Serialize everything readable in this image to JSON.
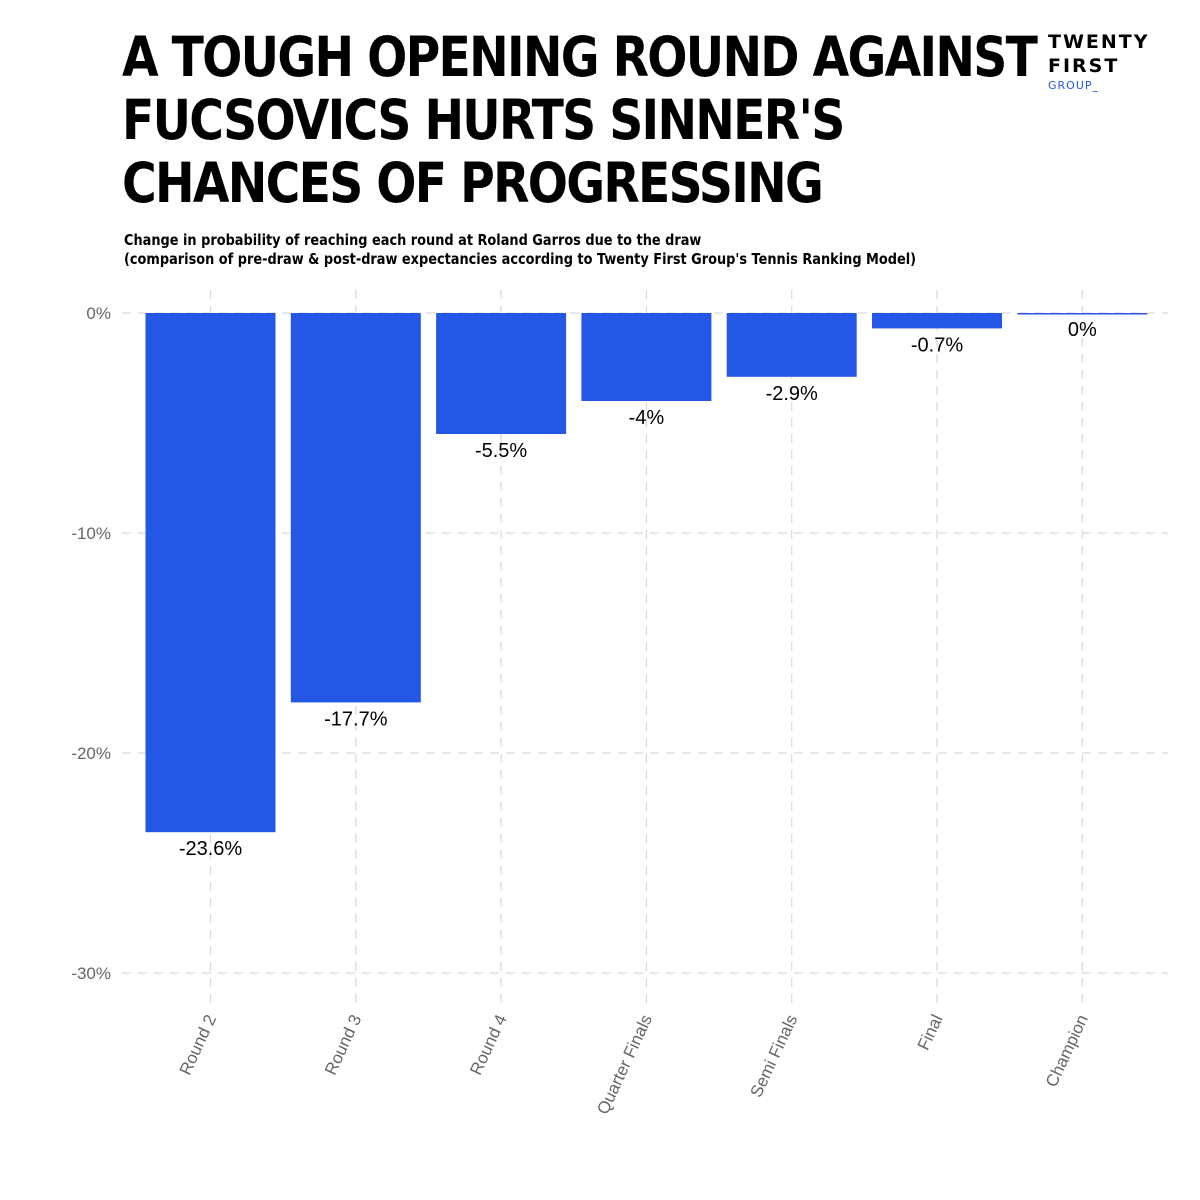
{
  "header": {
    "title_lines": [
      "A TOUGH OPENING ROUND AGAINST",
      "FUCSOVICS HURTS SINNER'S",
      "CHANCES OF PROGRESSING"
    ],
    "subtitle_lines": [
      "Change in probability of reaching each round at Roland Garros due to the draw",
      "(comparison of pre-draw & post-draw expectancies according to Twenty First Group's Tennis Ranking Model)"
    ]
  },
  "logo": {
    "line1": "TWENTY",
    "line2": "FIRST",
    "line3": "GROUP_",
    "sub_color": "#2457e6"
  },
  "chart_data": {
    "type": "bar",
    "title": "A TOUGH OPENING ROUND AGAINST FUCSOVICS HURTS SINNER'S CHANCES OF PROGRESSING",
    "subtitle": "Change in probability of reaching each round at Roland Garros due to the draw (comparison of pre-draw & post-draw expectancies according to Twenty First Group's Tennis Ranking Model)",
    "xlabel": "",
    "ylabel": "",
    "categories": [
      "Round 2",
      "Round 3",
      "Round 4",
      "Quarter Finals",
      "Semi Finals",
      "Final",
      "Champion"
    ],
    "values": [
      -23.6,
      -17.7,
      -5.5,
      -4,
      -2.9,
      -0.7,
      0
    ],
    "data_labels": [
      "-23.6%",
      "-17.7%",
      "-5.5%",
      "-4%",
      "-2.9%",
      "-0.7%",
      "0%"
    ],
    "ylim": [
      -30,
      0
    ],
    "yticks": [
      0,
      -10,
      -20,
      -30
    ],
    "ytick_labels": [
      "0%",
      "-10%",
      "-20%",
      "-30%"
    ],
    "grid": true,
    "bar_color": "#2457e6",
    "grid_color": "#d9d9d9"
  }
}
